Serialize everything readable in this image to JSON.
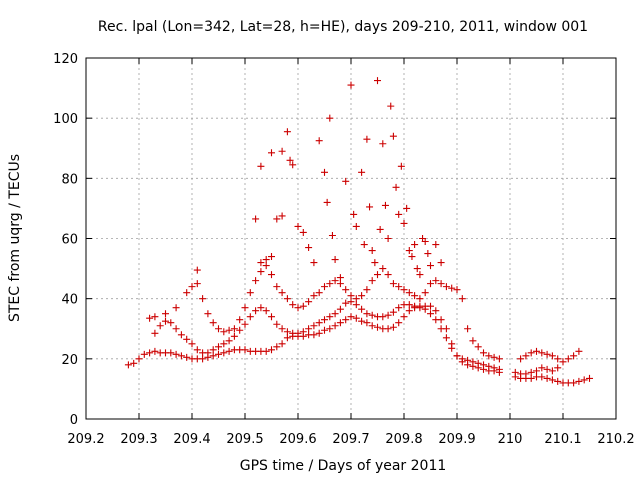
{
  "chart_data": {
    "type": "scatter",
    "title": "Rec. lpal (Lon=342, Lat=28, h=HE), days 209-210, 2011, window 001",
    "xlabel": "GPS time / Days of year 2011",
    "ylabel": "STEC from uqrg / TECUs",
    "xlim": [
      209.2,
      210.2
    ],
    "ylim": [
      0,
      120
    ],
    "xticks": [
      209.2,
      209.3,
      209.4,
      209.5,
      209.6,
      209.7,
      209.8,
      209.9,
      210,
      210.1,
      210.2
    ],
    "xtick_labels": [
      "209.2",
      "209.3",
      "209.4",
      "209.5",
      "209.6",
      "209.7",
      "209.8",
      "209.9",
      "210",
      "210.1",
      "210.2"
    ],
    "yticks": [
      0,
      20,
      40,
      60,
      80,
      100,
      120
    ],
    "ytick_labels": [
      "0",
      "20",
      "40",
      "60",
      "80",
      "100",
      "120"
    ],
    "grid": true,
    "marker": "+",
    "marker_color": "#cc0000",
    "series": [
      {
        "values": [
          [
            209.28,
            18
          ],
          [
            209.29,
            18.5
          ],
          [
            209.3,
            20
          ],
          [
            209.31,
            21.5
          ],
          [
            209.32,
            22
          ],
          [
            209.33,
            22.5
          ],
          [
            209.34,
            22
          ],
          [
            209.35,
            22
          ],
          [
            209.36,
            22
          ],
          [
            209.37,
            21.5
          ],
          [
            209.38,
            21
          ],
          [
            209.39,
            20.5
          ],
          [
            209.4,
            20
          ],
          [
            209.41,
            20
          ],
          [
            209.42,
            20
          ],
          [
            209.43,
            20.5
          ],
          [
            209.44,
            21
          ],
          [
            209.45,
            21.5
          ],
          [
            209.46,
            22
          ],
          [
            209.47,
            22.5
          ],
          [
            209.48,
            23
          ],
          [
            209.49,
            23
          ],
          [
            209.5,
            23
          ],
          [
            209.51,
            22.5
          ],
          [
            209.52,
            22.5
          ],
          [
            209.53,
            22.5
          ],
          [
            209.54,
            22.5
          ],
          [
            209.55,
            23
          ],
          [
            209.56,
            24
          ],
          [
            209.57,
            25
          ],
          [
            209.58,
            27
          ],
          [
            209.59,
            27.5
          ],
          [
            209.6,
            27.5
          ],
          [
            209.61,
            27.5
          ],
          [
            209.62,
            28
          ],
          [
            209.63,
            28
          ],
          [
            209.64,
            28.5
          ],
          [
            209.65,
            29.5
          ],
          [
            209.66,
            30
          ],
          [
            209.67,
            31
          ],
          [
            209.68,
            32
          ],
          [
            209.69,
            33
          ],
          [
            209.7,
            34
          ],
          [
            209.71,
            33.5
          ],
          [
            209.72,
            32.5
          ],
          [
            209.73,
            32
          ],
          [
            209.74,
            31
          ],
          [
            209.75,
            30.5
          ],
          [
            209.76,
            30
          ],
          [
            209.77,
            30
          ],
          [
            209.78,
            30.5
          ],
          [
            209.79,
            32
          ],
          [
            209.8,
            34
          ],
          [
            209.81,
            36
          ],
          [
            209.82,
            37
          ],
          [
            209.83,
            37.5
          ],
          [
            209.84,
            37.5
          ],
          [
            209.85,
            37.5
          ],
          [
            209.86,
            36
          ],
          [
            209.87,
            33
          ],
          [
            209.88,
            30
          ],
          [
            209.89,
            25
          ],
          [
            209.9,
            21
          ],
          [
            209.91,
            19
          ],
          [
            209.92,
            18
          ],
          [
            209.93,
            17.5
          ],
          [
            209.94,
            17
          ],
          [
            209.95,
            16.5
          ],
          [
            209.96,
            16
          ],
          [
            209.97,
            16
          ],
          [
            209.98,
            15.5
          ],
          [
            210.01,
            14
          ],
          [
            210.02,
            13.5
          ],
          [
            210.03,
            13.5
          ],
          [
            210.04,
            13.5
          ],
          [
            210.05,
            14
          ],
          [
            210.06,
            14
          ],
          [
            210.07,
            13.5
          ],
          [
            210.08,
            13
          ],
          [
            210.09,
            12.5
          ],
          [
            210.1,
            12
          ],
          [
            210.11,
            12
          ],
          [
            210.12,
            12
          ],
          [
            210.13,
            12.5
          ],
          [
            210.14,
            13
          ],
          [
            210.15,
            13.5
          ],
          [
            209.33,
            28.5
          ],
          [
            209.34,
            31
          ],
          [
            209.35,
            32.5
          ],
          [
            209.36,
            32
          ],
          [
            209.37,
            30
          ],
          [
            209.38,
            28
          ],
          [
            209.39,
            26.5
          ],
          [
            209.4,
            25
          ],
          [
            209.41,
            23
          ],
          [
            209.42,
            22
          ],
          [
            209.43,
            22
          ],
          [
            209.44,
            23
          ],
          [
            209.45,
            24
          ],
          [
            209.46,
            25
          ],
          [
            209.47,
            26
          ],
          [
            209.48,
            27.5
          ],
          [
            209.49,
            29.5
          ],
          [
            209.5,
            31.5
          ],
          [
            209.51,
            34
          ],
          [
            209.52,
            36
          ],
          [
            209.53,
            37
          ],
          [
            209.54,
            36
          ],
          [
            209.55,
            34
          ],
          [
            209.56,
            31.5
          ],
          [
            209.57,
            30
          ],
          [
            209.58,
            29
          ],
          [
            209.59,
            28.5
          ],
          [
            209.6,
            28.5
          ],
          [
            209.61,
            29
          ],
          [
            209.62,
            30
          ],
          [
            209.63,
            31
          ],
          [
            209.64,
            32
          ],
          [
            209.65,
            33
          ],
          [
            209.66,
            34
          ],
          [
            209.67,
            35
          ],
          [
            209.68,
            36.5
          ],
          [
            209.69,
            38.5
          ],
          [
            209.7,
            39
          ],
          [
            209.71,
            38
          ],
          [
            209.72,
            36.5
          ],
          [
            209.73,
            35
          ],
          [
            209.74,
            34.5
          ],
          [
            209.75,
            34
          ],
          [
            209.76,
            34
          ],
          [
            209.77,
            34.5
          ],
          [
            209.78,
            35.5
          ],
          [
            209.79,
            37
          ],
          [
            209.8,
            38
          ],
          [
            209.81,
            38
          ],
          [
            209.82,
            37.5
          ],
          [
            209.83,
            37
          ],
          [
            209.84,
            36.5
          ],
          [
            209.85,
            35
          ],
          [
            209.86,
            33
          ],
          [
            209.87,
            30
          ],
          [
            209.88,
            27
          ],
          [
            209.89,
            23.5
          ],
          [
            209.9,
            21
          ],
          [
            209.91,
            20
          ],
          [
            209.92,
            19.5
          ],
          [
            209.93,
            19
          ],
          [
            209.94,
            18.5
          ],
          [
            209.95,
            18
          ],
          [
            209.96,
            17.5
          ],
          [
            209.97,
            17
          ],
          [
            209.98,
            16.5
          ],
          [
            210.01,
            15.5
          ],
          [
            210.02,
            15
          ],
          [
            210.03,
            15
          ],
          [
            210.04,
            15.5
          ],
          [
            210.05,
            16
          ],
          [
            210.06,
            17
          ],
          [
            210.07,
            16.5
          ],
          [
            210.08,
            16
          ],
          [
            210.09,
            17
          ],
          [
            210.1,
            19
          ],
          [
            210.11,
            20
          ],
          [
            210.12,
            21
          ],
          [
            210.13,
            22.5
          ],
          [
            209.32,
            33.5
          ],
          [
            209.33,
            34
          ],
          [
            209.35,
            35
          ],
          [
            209.37,
            37
          ],
          [
            209.39,
            42
          ],
          [
            209.4,
            44
          ],
          [
            209.41,
            45
          ],
          [
            209.42,
            40
          ],
          [
            209.43,
            35
          ],
          [
            209.44,
            32
          ],
          [
            209.45,
            30
          ],
          [
            209.46,
            29
          ],
          [
            209.47,
            29.5
          ],
          [
            209.48,
            30
          ],
          [
            209.49,
            33
          ],
          [
            209.5,
            37
          ],
          [
            209.51,
            42
          ],
          [
            209.52,
            46
          ],
          [
            209.53,
            49
          ],
          [
            209.54,
            51
          ],
          [
            209.55,
            48
          ],
          [
            209.56,
            44
          ],
          [
            209.57,
            42
          ],
          [
            209.58,
            40
          ],
          [
            209.59,
            38
          ],
          [
            209.6,
            37
          ],
          [
            209.61,
            37.5
          ],
          [
            209.62,
            39
          ],
          [
            209.63,
            41
          ],
          [
            209.64,
            42
          ],
          [
            209.65,
            44
          ],
          [
            209.66,
            45
          ],
          [
            209.67,
            46
          ],
          [
            209.68,
            45
          ],
          [
            209.69,
            43
          ],
          [
            209.7,
            41
          ],
          [
            209.71,
            40
          ],
          [
            209.72,
            41
          ],
          [
            209.73,
            43
          ],
          [
            209.74,
            46
          ],
          [
            209.75,
            48
          ],
          [
            209.76,
            50
          ],
          [
            209.77,
            48
          ],
          [
            209.78,
            45
          ],
          [
            209.79,
            44
          ],
          [
            209.8,
            43
          ],
          [
            209.81,
            42
          ],
          [
            209.82,
            41
          ],
          [
            209.83,
            40
          ],
          [
            209.84,
            42
          ],
          [
            209.85,
            45
          ],
          [
            209.86,
            46
          ],
          [
            209.87,
            45
          ],
          [
            209.88,
            44
          ],
          [
            209.89,
            43.5
          ],
          [
            209.9,
            43
          ],
          [
            209.91,
            40
          ],
          [
            209.92,
            30
          ],
          [
            209.93,
            26
          ],
          [
            209.94,
            24
          ],
          [
            209.95,
            22
          ],
          [
            209.96,
            21
          ],
          [
            209.97,
            20.5
          ],
          [
            209.98,
            20
          ],
          [
            210.02,
            20
          ],
          [
            210.03,
            21
          ],
          [
            210.04,
            22
          ],
          [
            210.05,
            22.5
          ],
          [
            210.06,
            22
          ],
          [
            210.07,
            21.5
          ],
          [
            210.08,
            21
          ],
          [
            210.09,
            20
          ],
          [
            209.41,
            49.5
          ],
          [
            209.52,
            66.5
          ],
          [
            209.53,
            52
          ],
          [
            209.54,
            53
          ],
          [
            209.55,
            54
          ],
          [
            209.56,
            66.5
          ],
          [
            209.57,
            67.5
          ],
          [
            209.58,
            95.5
          ],
          [
            209.585,
            86
          ],
          [
            209.59,
            84.5
          ],
          [
            209.6,
            64
          ],
          [
            209.61,
            62
          ],
          [
            209.62,
            57
          ],
          [
            209.63,
            52
          ],
          [
            209.64,
            92.5
          ],
          [
            209.65,
            82
          ],
          [
            209.655,
            72
          ],
          [
            209.66,
            100
          ],
          [
            209.665,
            61
          ],
          [
            209.67,
            53
          ],
          [
            209.68,
            47
          ],
          [
            209.69,
            79
          ],
          [
            209.7,
            111
          ],
          [
            209.705,
            68
          ],
          [
            209.71,
            64
          ],
          [
            209.72,
            82
          ],
          [
            209.725,
            58
          ],
          [
            209.73,
            93
          ],
          [
            209.735,
            70.5
          ],
          [
            209.74,
            56
          ],
          [
            209.745,
            52
          ],
          [
            209.75,
            112.5
          ],
          [
            209.755,
            63
          ],
          [
            209.76,
            91.5
          ],
          [
            209.765,
            71
          ],
          [
            209.77,
            60
          ],
          [
            209.775,
            104
          ],
          [
            209.78,
            94
          ],
          [
            209.785,
            77
          ],
          [
            209.79,
            68
          ],
          [
            209.795,
            84
          ],
          [
            209.8,
            65
          ],
          [
            209.805,
            70
          ],
          [
            209.81,
            56
          ],
          [
            209.815,
            54
          ],
          [
            209.82,
            58
          ],
          [
            209.825,
            50
          ],
          [
            209.83,
            48
          ],
          [
            209.835,
            60
          ],
          [
            209.84,
            59
          ],
          [
            209.845,
            55
          ],
          [
            209.85,
            51
          ],
          [
            209.86,
            58
          ],
          [
            209.87,
            52
          ],
          [
            209.53,
            84
          ],
          [
            209.55,
            88.5
          ],
          [
            209.57,
            89
          ]
        ]
      }
    ]
  }
}
